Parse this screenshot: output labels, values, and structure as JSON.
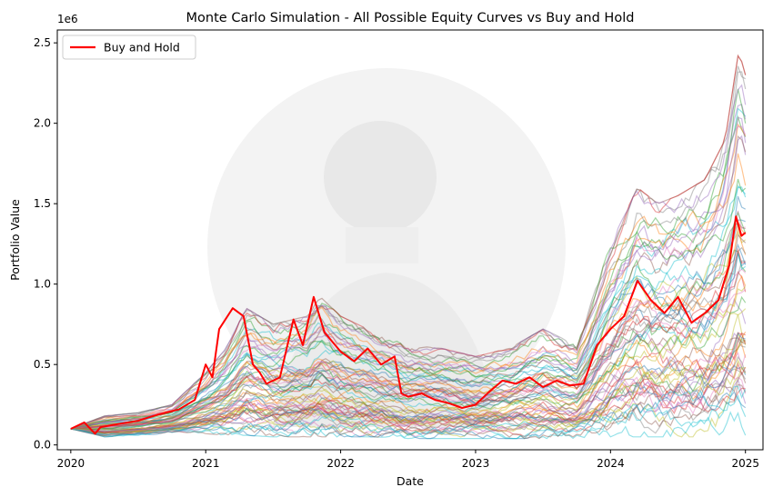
{
  "chart_data": {
    "type": "line",
    "title": "Monte Carlo Simulation - All Possible Equity Curves vs Buy and Hold",
    "xlabel": "Date",
    "ylabel": "Portfolio Value",
    "y_offset_label": "1e6",
    "x_ticks": [
      "2020",
      "2021",
      "2022",
      "2023",
      "2024",
      "2025"
    ],
    "y_ticks": [
      "0.0",
      "0.5",
      "1.0",
      "1.5",
      "2.0",
      "2.5"
    ],
    "y_tick_values": [
      0,
      0.5,
      1.0,
      1.5,
      2.0,
      2.5
    ],
    "xlim": [
      2019.9,
      2025.13
    ],
    "ylim": [
      -0.03,
      2.58
    ],
    "grid": false,
    "legend": {
      "position": "top-left",
      "entries": [
        "Buy and Hold"
      ]
    },
    "series": [
      {
        "name": "Buy and Hold",
        "color": "#ff0000",
        "x": [
          2020.0,
          2020.1,
          2020.18,
          2020.22,
          2020.35,
          2020.5,
          2020.65,
          2020.8,
          2020.92,
          2021.0,
          2021.05,
          2021.1,
          2021.2,
          2021.28,
          2021.35,
          2021.4,
          2021.45,
          2021.55,
          2021.65,
          2021.72,
          2021.8,
          2021.88,
          2022.0,
          2022.1,
          2022.2,
          2022.3,
          2022.4,
          2022.45,
          2022.5,
          2022.6,
          2022.7,
          2022.8,
          2022.9,
          2023.0,
          2023.1,
          2023.2,
          2023.3,
          2023.4,
          2023.5,
          2023.6,
          2023.7,
          2023.8,
          2023.9,
          2024.0,
          2024.1,
          2024.2,
          2024.3,
          2024.4,
          2024.5,
          2024.6,
          2024.7,
          2024.8,
          2024.88,
          2024.93,
          2024.97,
          2025.0
        ],
        "values": [
          0.1,
          0.14,
          0.07,
          0.11,
          0.13,
          0.15,
          0.19,
          0.22,
          0.28,
          0.5,
          0.42,
          0.72,
          0.85,
          0.8,
          0.5,
          0.45,
          0.38,
          0.42,
          0.78,
          0.62,
          0.92,
          0.7,
          0.58,
          0.52,
          0.6,
          0.5,
          0.55,
          0.32,
          0.3,
          0.32,
          0.28,
          0.26,
          0.23,
          0.25,
          0.33,
          0.4,
          0.38,
          0.42,
          0.36,
          0.4,
          0.37,
          0.38,
          0.62,
          0.72,
          0.8,
          1.02,
          0.9,
          0.82,
          0.92,
          0.76,
          0.82,
          0.9,
          1.12,
          1.42,
          1.3,
          1.32
        ]
      }
    ],
    "simulation_envelope": {
      "x": [
        2020.0,
        2020.25,
        2020.5,
        2020.75,
        2021.0,
        2021.15,
        2021.3,
        2021.5,
        2021.75,
        2021.85,
        2022.0,
        2022.25,
        2022.5,
        2022.75,
        2023.0,
        2023.25,
        2023.5,
        2023.75,
        2024.0,
        2024.2,
        2024.35,
        2024.5,
        2024.7,
        2024.85,
        2024.95,
        2025.0
      ],
      "upper": [
        0.1,
        0.18,
        0.2,
        0.25,
        0.45,
        0.6,
        0.85,
        0.75,
        0.8,
        0.92,
        0.8,
        0.7,
        0.62,
        0.6,
        0.55,
        0.6,
        0.72,
        0.62,
        1.25,
        1.6,
        1.5,
        1.55,
        1.65,
        1.9,
        2.45,
        2.3
      ],
      "lower": [
        0.1,
        0.05,
        0.06,
        0.07,
        0.07,
        0.06,
        0.06,
        0.05,
        0.05,
        0.05,
        0.05,
        0.05,
        0.04,
        0.04,
        0.04,
        0.04,
        0.04,
        0.04,
        0.05,
        0.05,
        0.05,
        0.05,
        0.05,
        0.06,
        0.06,
        0.06
      ]
    }
  }
}
